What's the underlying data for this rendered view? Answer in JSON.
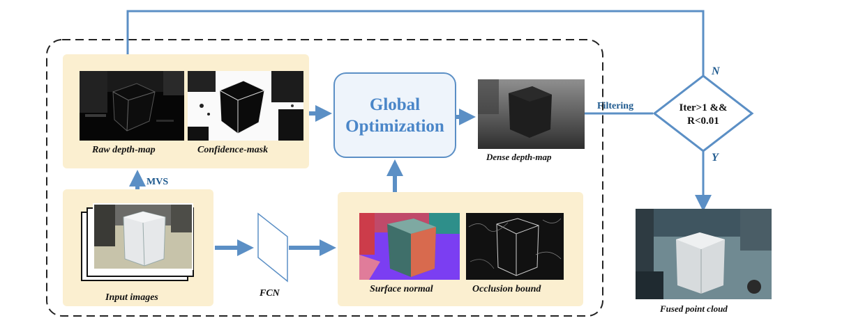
{
  "labels": {
    "mvs": "MVS",
    "filtering": "Filtering",
    "no": "N",
    "yes": "Y"
  },
  "optimization": {
    "line1": "Global",
    "line2": "Optimization"
  },
  "condition": {
    "line1": "Iter>1 &&",
    "line2": "R<0.01"
  },
  "captions": {
    "raw_depth": "Raw depth-map",
    "confidence": "Confidence-mask",
    "input_images": "Input images",
    "fcn": "FCN",
    "surface_normal": "Surface normal",
    "occlusion_bound": "Occlusion bound",
    "dense_depth": "Dense depth-map",
    "fused_cloud": "Fused point cloud"
  },
  "colors": {
    "arrow": "#5b8fc5",
    "panel": "#fbefd0",
    "dashed_border": "#222222"
  }
}
